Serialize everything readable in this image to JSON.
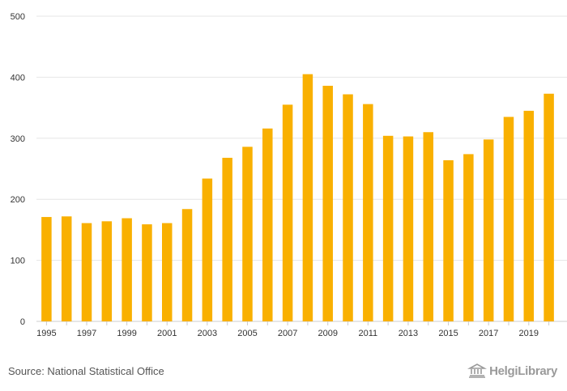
{
  "chart_data": {
    "type": "bar",
    "title": "",
    "xlabel": "",
    "ylabel": "",
    "ylim": [
      0,
      500
    ],
    "yticks": [
      0,
      100,
      200,
      300,
      400,
      500
    ],
    "categories": [
      "1995",
      "1996",
      "1997",
      "1998",
      "1999",
      "2000",
      "2001",
      "2002",
      "2003",
      "2004",
      "2005",
      "2006",
      "2007",
      "2008",
      "2009",
      "2010",
      "2011",
      "2012",
      "2013",
      "2014",
      "2015",
      "2016",
      "2017",
      "2018",
      "2019",
      "2020"
    ],
    "values": [
      171,
      172,
      161,
      164,
      169,
      159,
      161,
      184,
      234,
      268,
      286,
      316,
      355,
      405,
      386,
      372,
      356,
      304,
      303,
      310,
      264,
      274,
      298,
      335,
      345,
      373
    ],
    "xtick_labels": [
      "1995",
      "",
      "1997",
      "",
      "1999",
      "",
      "2001",
      "",
      "2003",
      "",
      "2005",
      "",
      "2007",
      "",
      "2009",
      "",
      "2011",
      "",
      "2013",
      "",
      "2015",
      "",
      "2017",
      "",
      "2019",
      ""
    ],
    "bar_color": "#f9b000",
    "grid": true
  },
  "footer": {
    "source": "Source: National Statistical Office",
    "logo_text": "HelgiLibrary"
  }
}
